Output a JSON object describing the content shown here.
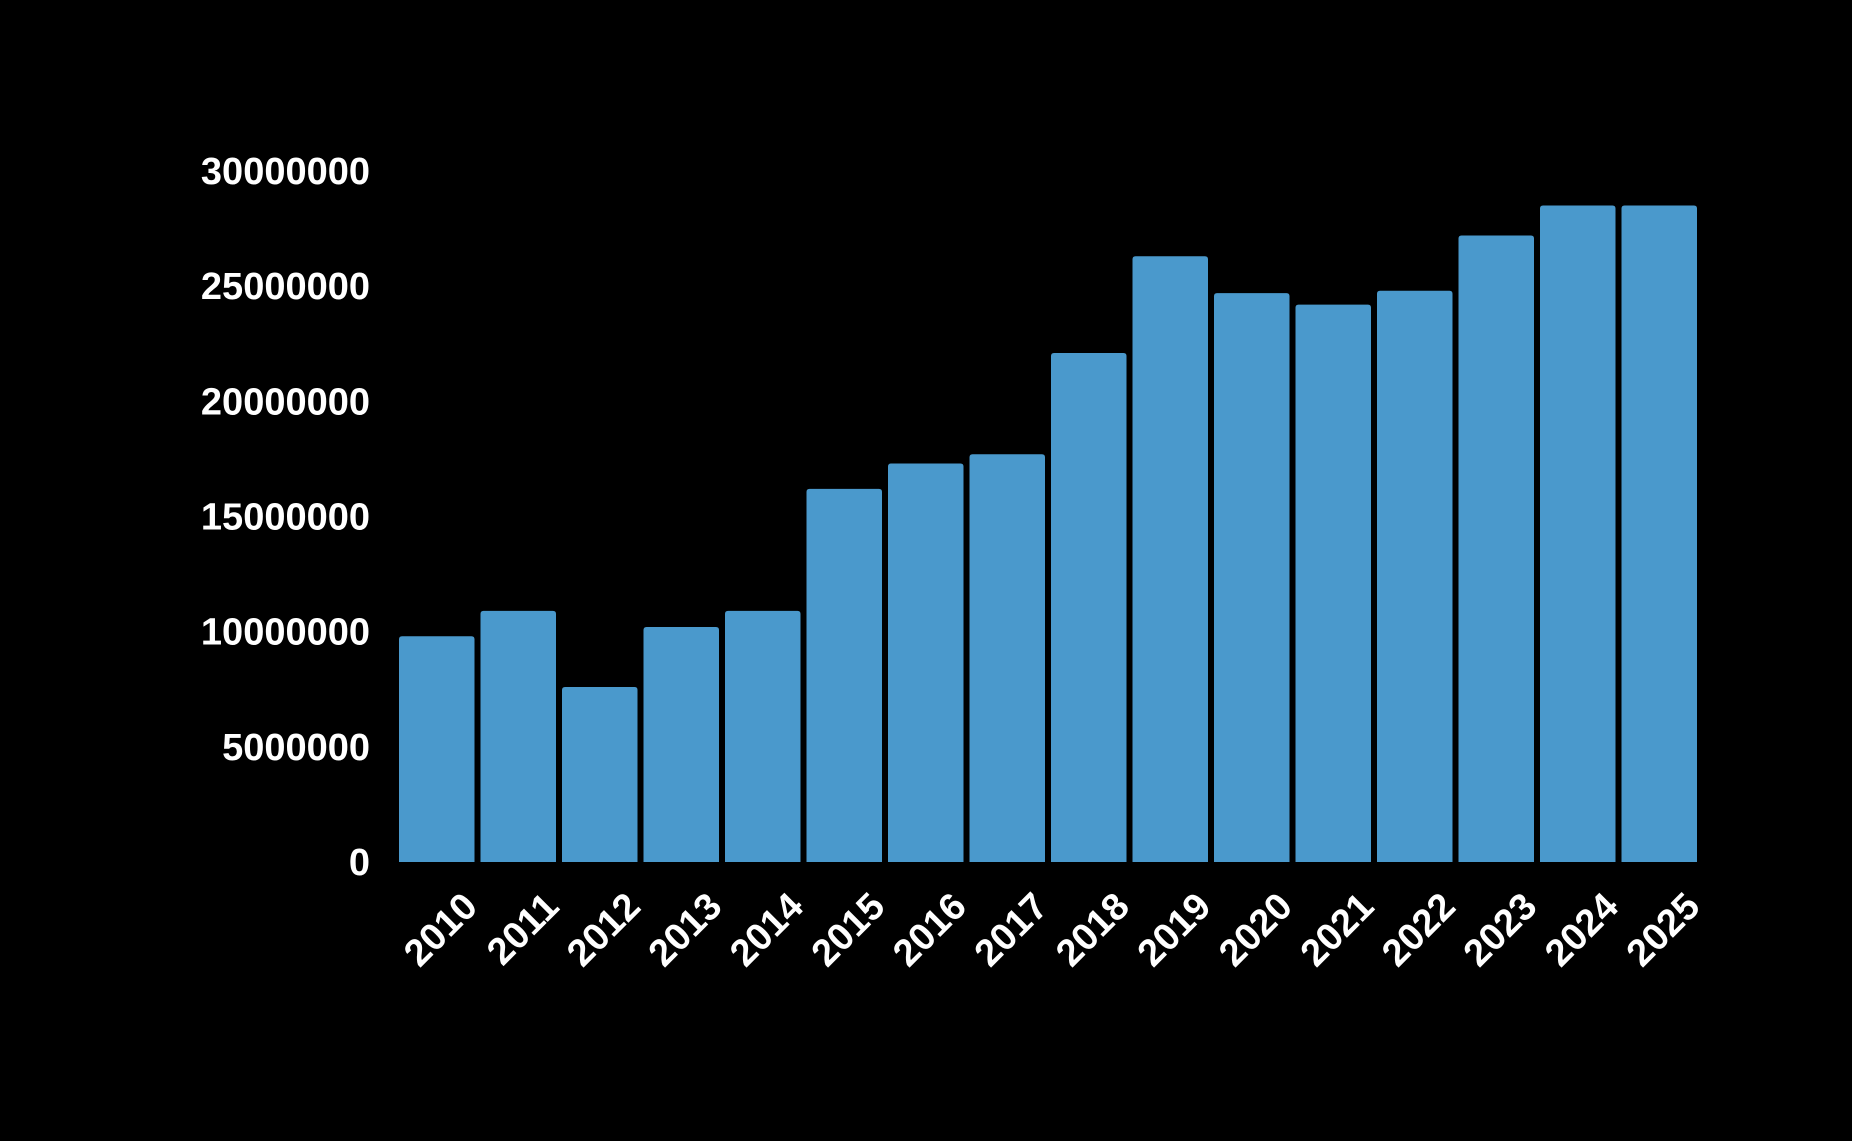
{
  "colors": {
    "background": "#000000",
    "bar": "#4a99cc",
    "text": "#ffffff"
  },
  "chart_data": {
    "type": "bar",
    "title": "",
    "xlabel": "",
    "ylabel": "",
    "categories": [
      "2010",
      "2011",
      "2012",
      "2013",
      "2014",
      "2015",
      "2016",
      "2017",
      "2018",
      "2019",
      "2020",
      "2021",
      "2022",
      "2023",
      "2024",
      "2025"
    ],
    "values": [
      9800000,
      10900000,
      7600000,
      10200000,
      10900000,
      16200000,
      17300000,
      17700000,
      22100000,
      26300000,
      24700000,
      24200000,
      24800000,
      27200000,
      28500000,
      28500000
    ],
    "ylim": [
      0,
      30000000
    ],
    "yticks": [
      "0",
      "5000000",
      "10000000",
      "15000000",
      "20000000",
      "25000000",
      "30000000"
    ],
    "grid": false,
    "legend": "none"
  }
}
